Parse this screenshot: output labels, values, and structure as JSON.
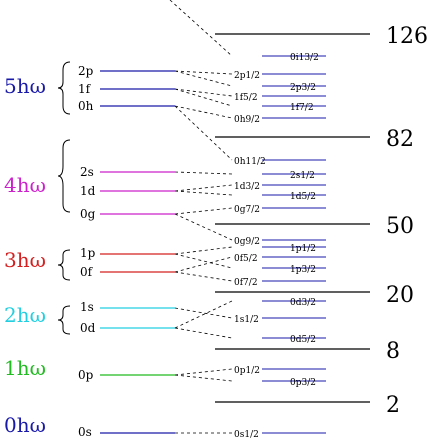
{
  "shells": [
    {
      "label": "0hω",
      "color": "#1a1aa8"
    },
    {
      "label": "1hω",
      "color": "#22bb22"
    },
    {
      "label": "2hω",
      "color": "#22cfe0"
    },
    {
      "label": "3hω",
      "color": "#d42020"
    },
    {
      "label": "4hω",
      "color": "#cc22cc"
    },
    {
      "label": "5hω",
      "color": "#1a1aa8"
    }
  ],
  "left_levels": [
    "0s",
    "0p",
    "0d",
    "1s",
    "0f",
    "1p",
    "0g",
    "1d",
    "2s",
    "0h",
    "1f",
    "2p"
  ],
  "split_levels": [
    "0s1/2",
    "0p3/2",
    "0p1/2",
    "0d5/2",
    "1s1/2",
    "0d3/2",
    "0f7/2",
    "1p3/2",
    "0f5/2",
    "1p1/2",
    "0g9/2",
    "0g7/2",
    "1d5/2",
    "1d3/2",
    "2s1/2",
    "0h11/2",
    "0h9/2",
    "1f7/2",
    "1f5/2",
    "2p3/2",
    "2p1/2",
    "0i13/2"
  ],
  "magic_numbers": [
    "2",
    "8",
    "20",
    "50",
    "82",
    "126"
  ]
}
